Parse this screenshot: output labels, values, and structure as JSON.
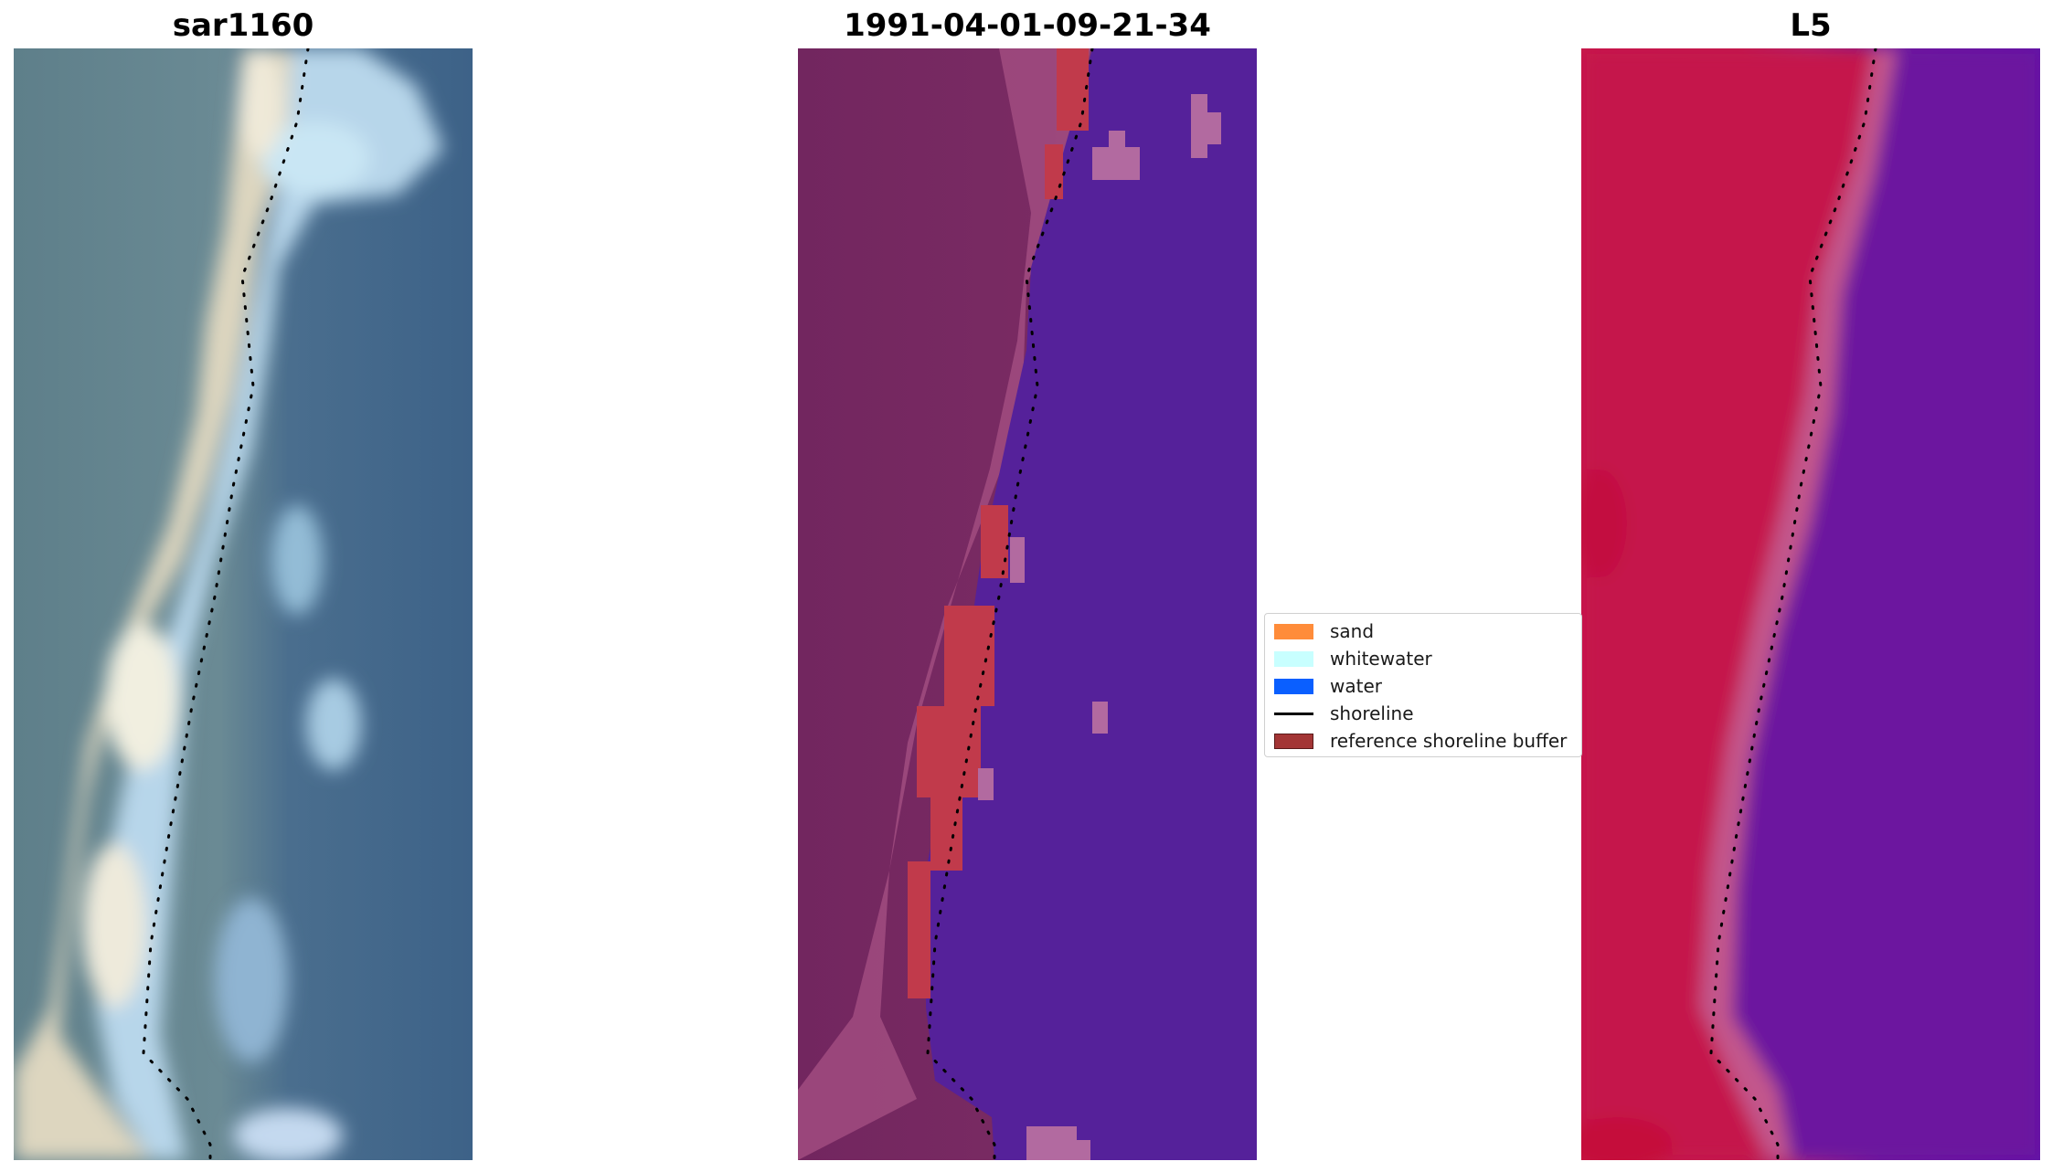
{
  "panels": [
    {
      "title": "sar1160"
    },
    {
      "title": "1991-04-01-09-21-34"
    },
    {
      "title": "L5"
    }
  ],
  "legend": {
    "items": [
      {
        "label": "sand",
        "kind": "patch",
        "color": "#ff8c3a"
      },
      {
        "label": "whitewater",
        "kind": "patch",
        "color": "#c8ffff"
      },
      {
        "label": "water",
        "kind": "patch",
        "color": "#0a5fff"
      },
      {
        "label": "shoreline",
        "kind": "line",
        "color": "#000000"
      },
      {
        "label": "reference shoreline buffer",
        "kind": "patch",
        "color": "#a33535"
      }
    ]
  },
  "colors": {
    "rgb_sand": "#e6e0cf",
    "rgb_whitewater": "#b9dcf2",
    "rgb_water": "#3f6488",
    "rgb_land": "#5b7d88",
    "class_land": "#74255e",
    "class_land_light": "#b55a8a",
    "class_water": "#55219a",
    "class_buffer": "#c33a4a",
    "index_land": "#c8164a",
    "index_water": "#6a1aa0",
    "shoreline": "#000000"
  }
}
